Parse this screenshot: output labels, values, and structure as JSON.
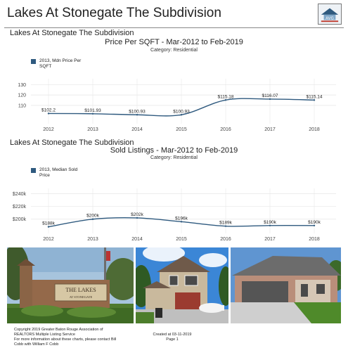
{
  "header": {
    "title": "Lakes At Stonegate The Subdivision"
  },
  "sections": [
    {
      "label": "Lakes At Stonegate The Subdivision",
      "chart_title": "Price Per SQFT - Mar-2012 to Feb-2019",
      "chart_subtitle": "Category: Residential",
      "legend_label": "2013, Mdn Price Per SQFT"
    },
    {
      "label": "Lakes At Stonegate The Subdivision",
      "chart_title": "Sold Listings - Mar-2012 to Feb-2019",
      "chart_subtitle": "Category: Residential",
      "legend_label": "2013, Median Sold Price"
    }
  ],
  "chart_data": [
    {
      "type": "line",
      "title": "Price Per SQFT - Mar-2012 to Feb-2019",
      "subtitle": "Category: Residential",
      "x": [
        "2012",
        "2013",
        "2014",
        "2015",
        "2016",
        "2017",
        "2018"
      ],
      "series": [
        {
          "name": "2013, Mdn Price Per SQFT",
          "values": [
            102.2,
            101.93,
            100.93,
            100.93,
            115.18,
            116.07,
            115.14
          ],
          "color": "#2f5a7f"
        }
      ],
      "data_labels": [
        "$102.2",
        "$101.93",
        "$100.93",
        "$100.93",
        "$115.18",
        "$116.07",
        "$115.14"
      ],
      "yticks": [
        110,
        120,
        130
      ],
      "ytick_labels": [
        "110",
        "120",
        "130"
      ],
      "ylim": [
        95,
        133
      ],
      "grid": true,
      "legend": "top-left"
    },
    {
      "type": "line",
      "title": "Sold Listings - Mar-2012 to Feb-2019",
      "subtitle": "Category: Residential",
      "x": [
        "2012",
        "2013",
        "2014",
        "2015",
        "2016",
        "2017",
        "2018"
      ],
      "series": [
        {
          "name": "2013, Median Sold Price",
          "values": [
            188,
            200,
            202,
            196,
            189,
            190,
            190
          ],
          "color": "#2f5a7f"
        }
      ],
      "data_labels": [
        "$188k",
        "$200k",
        "$202k",
        "$196k",
        "$189k",
        "$190k",
        "$190k"
      ],
      "yticks": [
        200,
        220,
        240
      ],
      "ytick_labels": [
        "$200k",
        "$220k",
        "$240k"
      ],
      "ylim": [
        182,
        244
      ],
      "grid": true,
      "legend": "top-left"
    }
  ],
  "photos": [
    "entrance-sign-photo",
    "two-story-house-photo",
    "single-story-house-photo"
  ],
  "photo_sign_text": [
    "THE LAKES",
    "AT STONEGATE"
  ],
  "logo_text": "AVG",
  "footer": {
    "copyright": "Copyright 2019 Greater Baton Rouge Association of REALTORS Multiple Listing Service",
    "contact": "For more information about these charts, please contact Bill Cobb with William F Cobb",
    "created": "Created at 03-11-2019",
    "page": "Page 1"
  }
}
